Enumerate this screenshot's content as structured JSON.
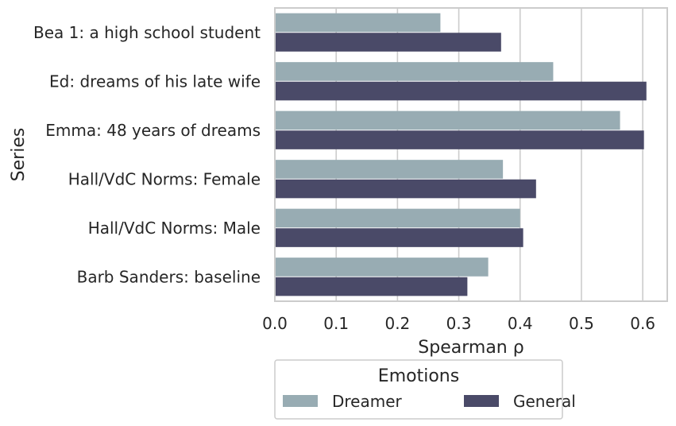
{
  "chart_data": {
    "type": "bar",
    "orientation": "horizontal",
    "categories": [
      "Bea 1: a high school student",
      "Ed: dreams of his late wife",
      "Emma: 48 years of dreams",
      "Hall/VdC Norms: Female",
      "Hall/VdC Norms: Male",
      "Barb Sanders: baseline"
    ],
    "series": [
      {
        "name": "Dreamer",
        "color": "#98acb3",
        "values": [
          0.27,
          0.454,
          0.563,
          0.372,
          0.4,
          0.348
        ]
      },
      {
        "name": "General",
        "color": "#4a4a68",
        "values": [
          0.369,
          0.606,
          0.602,
          0.426,
          0.405,
          0.314
        ]
      }
    ],
    "xlabel": "Spearman ρ",
    "ylabel": "Series",
    "xlim": [
      0.0,
      0.64
    ],
    "xticks": [
      "0.0",
      "0.1",
      "0.2",
      "0.3",
      "0.4",
      "0.5",
      "0.6"
    ],
    "grid": "x",
    "legend": {
      "title": "Emotions",
      "placement": "below"
    }
  }
}
